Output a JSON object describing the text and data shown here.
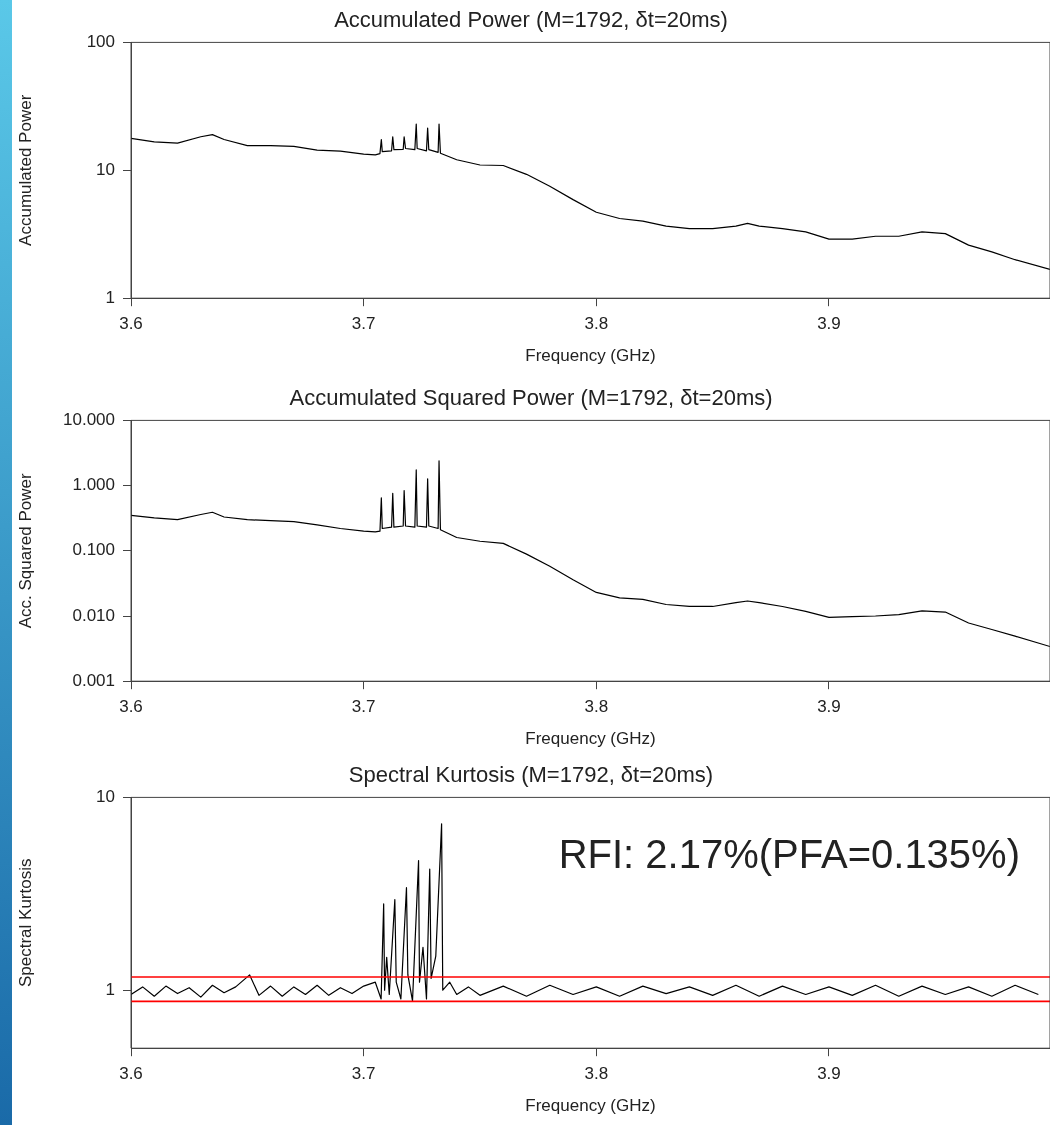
{
  "chart_data": [
    {
      "type": "line",
      "title": "Accumulated Power (M=1792, δt=20ms)",
      "xlabel": "Frequency (GHz)",
      "ylabel": "Accumulated Power",
      "log": "y",
      "marker": "none",
      "xlim": [
        3.6,
        3.995
      ],
      "xticks": [
        3.6,
        3.7,
        3.8,
        3.9
      ],
      "ylim": [
        1,
        100
      ],
      "yticks": [
        1,
        10,
        100
      ],
      "x": [
        3.6,
        3.61,
        3.62,
        3.63,
        3.635,
        3.64,
        3.65,
        3.66,
        3.67,
        3.68,
        3.69,
        3.7,
        3.705,
        3.707,
        3.7076,
        3.708,
        3.712,
        3.7125,
        3.713,
        3.717,
        3.7174,
        3.718,
        3.722,
        3.7226,
        3.723,
        3.727,
        3.7275,
        3.728,
        3.732,
        3.7324,
        3.733,
        3.74,
        3.75,
        3.76,
        3.77,
        3.78,
        3.79,
        3.8,
        3.81,
        3.82,
        3.83,
        3.84,
        3.85,
        3.86,
        3.865,
        3.87,
        3.88,
        3.89,
        3.9,
        3.91,
        3.92,
        3.93,
        3.94,
        3.95,
        3.96,
        3.97,
        3.98,
        3.995
      ],
      "series": [
        {
          "color": "#000000",
          "values": [
            17.8,
            16.7,
            16.3,
            18.3,
            19,
            17.4,
            15.6,
            15.6,
            15.4,
            14.4,
            14.1,
            13.4,
            13.2,
            13.5,
            17.4,
            14,
            14.2,
            18.3,
            14.5,
            14.6,
            18.3,
            14.8,
            14.5,
            23,
            14.8,
            14.2,
            21.4,
            14.5,
            13.8,
            23,
            13.6,
            12.1,
            11,
            10.9,
            9.3,
            7.5,
            5.9,
            4.7,
            4.2,
            4.0,
            3.66,
            3.5,
            3.5,
            3.66,
            3.85,
            3.66,
            3.5,
            3.3,
            2.9,
            2.9,
            3.05,
            3.05,
            3.3,
            3.2,
            2.6,
            2.3,
            2.0,
            1.68
          ]
        }
      ]
    },
    {
      "type": "line",
      "title": "Accumulated Squared Power (M=1792, δt=20ms)",
      "xlabel": "Frequency (GHz)",
      "ylabel": "Acc. Squared Power",
      "log": "y",
      "marker": "none",
      "xlim": [
        3.6,
        3.995
      ],
      "xticks": [
        3.6,
        3.7,
        3.8,
        3.9
      ],
      "ylim": [
        0.001,
        10
      ],
      "yticks": [
        {
          "value": 0.001,
          "label": "0.001"
        },
        {
          "value": 0.01,
          "label": "0.010"
        },
        {
          "value": 0.1,
          "label": "0.100"
        },
        {
          "value": 1,
          "label": "1.000"
        },
        {
          "value": 10,
          "label": "10.000"
        }
      ],
      "x": [
        3.6,
        3.61,
        3.62,
        3.63,
        3.635,
        3.64,
        3.65,
        3.66,
        3.67,
        3.68,
        3.69,
        3.7,
        3.705,
        3.707,
        3.7076,
        3.708,
        3.712,
        3.7125,
        3.713,
        3.717,
        3.7174,
        3.718,
        3.722,
        3.7226,
        3.723,
        3.727,
        3.7275,
        3.728,
        3.732,
        3.7324,
        3.733,
        3.74,
        3.75,
        3.76,
        3.77,
        3.78,
        3.79,
        3.8,
        3.81,
        3.82,
        3.83,
        3.84,
        3.85,
        3.86,
        3.865,
        3.87,
        3.88,
        3.89,
        3.9,
        3.91,
        3.92,
        3.93,
        3.94,
        3.95,
        3.96,
        3.97,
        3.98,
        3.995
      ],
      "series": [
        {
          "color": "#000000",
          "values": [
            0.35,
            0.32,
            0.3,
            0.36,
            0.39,
            0.33,
            0.3,
            0.29,
            0.28,
            0.25,
            0.22,
            0.2,
            0.195,
            0.2,
            0.65,
            0.22,
            0.23,
            0.76,
            0.23,
            0.24,
            0.84,
            0.24,
            0.23,
            1.74,
            0.24,
            0.23,
            1.27,
            0.24,
            0.22,
            2.4,
            0.21,
            0.16,
            0.14,
            0.13,
            0.089,
            0.058,
            0.036,
            0.023,
            0.019,
            0.018,
            0.015,
            0.014,
            0.014,
            0.016,
            0.017,
            0.016,
            0.014,
            0.0118,
            0.0095,
            0.0098,
            0.01,
            0.0105,
            0.012,
            0.0115,
            0.0078,
            0.0062,
            0.0049,
            0.0034
          ]
        }
      ]
    },
    {
      "type": "line",
      "title": "Spectral Kurtosis (M=1792, δt=20ms)",
      "xlabel": "Frequency (GHz)",
      "ylabel": "Spectral Kurtosis",
      "log": "y",
      "marker": "none",
      "xlim": [
        3.6,
        3.995
      ],
      "xticks": [
        3.6,
        3.7,
        3.8,
        3.9
      ],
      "ylim": [
        0.5,
        10
      ],
      "yticks": [
        1,
        10
      ],
      "annotations": [
        "RFI: 2.17%(PFA=0.135%)"
      ],
      "ref_lines": [
        {
          "axis": "y",
          "value": 1.17,
          "color": "#ff0000"
        },
        {
          "axis": "y",
          "value": 0.875,
          "color": "#ff0000"
        }
      ],
      "x": [
        3.6,
        3.605,
        3.61,
        3.615,
        3.62,
        3.625,
        3.63,
        3.635,
        3.64,
        3.645,
        3.651,
        3.655,
        3.66,
        3.665,
        3.67,
        3.675,
        3.68,
        3.685,
        3.69,
        3.695,
        3.7,
        3.705,
        3.7075,
        3.7086,
        3.709,
        3.7099,
        3.711,
        3.7134,
        3.714,
        3.716,
        3.7184,
        3.719,
        3.721,
        3.7236,
        3.724,
        3.7255,
        3.727,
        3.7284,
        3.729,
        3.731,
        3.7335,
        3.734,
        3.737,
        3.74,
        3.745,
        3.75,
        3.76,
        3.77,
        3.78,
        3.79,
        3.8,
        3.81,
        3.82,
        3.83,
        3.84,
        3.85,
        3.86,
        3.87,
        3.88,
        3.89,
        3.9,
        3.91,
        3.92,
        3.93,
        3.94,
        3.95,
        3.96,
        3.97,
        3.98,
        3.99
      ],
      "series": [
        {
          "color": "#000000",
          "values": [
            0.95,
            1.04,
            0.93,
            1.05,
            0.96,
            1.03,
            0.92,
            1.06,
            0.97,
            1.04,
            1.2,
            0.94,
            1.05,
            0.93,
            1.04,
            0.95,
            1.06,
            0.94,
            1.03,
            0.96,
            1.05,
            1.1,
            0.9,
            2.8,
            1.0,
            1.48,
            0.95,
            2.95,
            1.1,
            0.9,
            3.4,
            1.2,
            0.88,
            4.7,
            1.1,
            1.67,
            0.9,
            4.25,
            1.15,
            1.5,
            7.3,
            1.0,
            1.1,
            0.95,
            1.04,
            0.94,
            1.05,
            0.93,
            1.06,
            0.95,
            1.04,
            0.93,
            1.05,
            0.96,
            1.04,
            0.94,
            1.06,
            0.93,
            1.05,
            0.95,
            1.04,
            0.94,
            1.06,
            0.93,
            1.05,
            0.95,
            1.04,
            0.93,
            1.06,
            0.95
          ]
        }
      ]
    }
  ]
}
